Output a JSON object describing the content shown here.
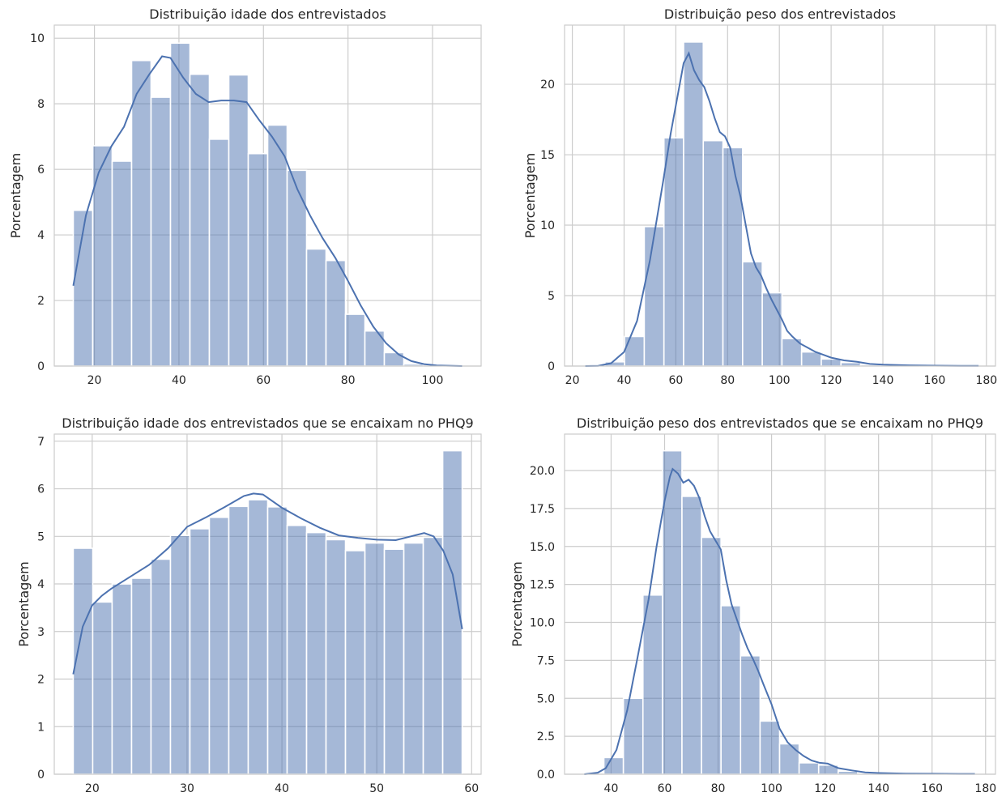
{
  "chart_data": [
    {
      "type": "bar",
      "title": "Distribuição idade dos entrevistados",
      "xlabel": "",
      "ylabel": "Porcentagem",
      "xlim": [
        10.5,
        111.5
      ],
      "ylim": [
        0,
        10.4
      ],
      "xticks": [
        20,
        40,
        60,
        80,
        100
      ],
      "yticks": [
        0,
        2,
        4,
        6,
        8,
        10
      ],
      "grid": true,
      "bins": {
        "edges": [
          15,
          19.6,
          24.2,
          28.8,
          33.4,
          38,
          42.6,
          47.2,
          51.8,
          56.4,
          61,
          65.6,
          70.2,
          74.8,
          79.4,
          84,
          88.6,
          93.2,
          97.8,
          102.4,
          107
        ],
        "values": [
          4.75,
          6.72,
          6.25,
          9.32,
          8.2,
          9.85,
          8.9,
          6.92,
          8.88,
          6.48,
          7.35,
          5.97,
          3.57,
          3.22,
          1.58,
          1.07,
          0.41,
          0.06,
          0.03,
          0.02
        ]
      },
      "kde": {
        "x": [
          15,
          18,
          21,
          24,
          27,
          30,
          33,
          36,
          38,
          41,
          44,
          47,
          50,
          53,
          56,
          59,
          62,
          65,
          68,
          71,
          74,
          77,
          80,
          83,
          86,
          89,
          92,
          95,
          98,
          101,
          104,
          107
        ],
        "y": [
          2.45,
          4.6,
          5.9,
          6.7,
          7.3,
          8.3,
          8.9,
          9.45,
          9.4,
          8.8,
          8.3,
          8.05,
          8.1,
          8.1,
          8.05,
          7.5,
          7.0,
          6.4,
          5.4,
          4.6,
          3.9,
          3.3,
          2.6,
          1.85,
          1.2,
          0.7,
          0.35,
          0.15,
          0.06,
          0.02,
          0.01,
          0.0
        ]
      }
    },
    {
      "type": "bar",
      "title": "Distribuição peso dos entrevistados",
      "xlabel": "",
      "ylabel": "Porcentagem",
      "xlim": [
        17,
        183.5
      ],
      "ylim": [
        0,
        24.2
      ],
      "xticks": [
        20,
        40,
        60,
        80,
        100,
        120,
        140,
        160,
        180
      ],
      "yticks": [
        0,
        5,
        10,
        15,
        20
      ],
      "grid": true,
      "bins": {
        "edges": [
          25,
          32.6,
          40.2,
          47.8,
          55.4,
          63,
          70.6,
          78.2,
          85.8,
          93.4,
          101,
          108.6,
          116.2,
          123.8,
          131.4,
          139,
          146.6,
          154.2,
          161.8,
          169.4,
          177
        ],
        "values": [
          0.02,
          0.3,
          2.1,
          9.9,
          16.2,
          23.0,
          16.0,
          15.5,
          7.4,
          5.2,
          1.95,
          1.0,
          0.5,
          0.25,
          0.1,
          0.05,
          0.03,
          0.03,
          0.02,
          0.02
        ]
      },
      "kde": {
        "x": [
          25,
          30,
          35,
          40,
          45,
          50,
          55,
          58,
          61,
          63,
          65,
          67,
          69,
          71,
          73,
          75,
          77,
          79,
          81,
          83,
          85,
          87,
          89,
          91,
          93,
          95,
          97,
          99,
          101,
          103,
          105,
          108,
          111,
          114,
          117,
          120,
          125,
          130,
          135,
          140,
          150,
          160,
          170,
          177
        ],
        "y": [
          0.0,
          0.02,
          0.2,
          1.0,
          3.2,
          7.5,
          13.0,
          16.5,
          19.5,
          21.5,
          22.2,
          21.0,
          20.3,
          19.8,
          18.8,
          17.6,
          16.6,
          16.3,
          15.5,
          13.5,
          12.0,
          10.0,
          8.0,
          7.0,
          6.4,
          5.5,
          4.7,
          4.0,
          3.3,
          2.5,
          2.1,
          1.6,
          1.3,
          1.0,
          0.8,
          0.6,
          0.4,
          0.3,
          0.15,
          0.1,
          0.05,
          0.03,
          0.02,
          0.02
        ]
      }
    },
    {
      "type": "bar",
      "title": "Distribuição idade dos entrevistados que se encaixam no PHQ9",
      "xlabel": "",
      "ylabel": "Porcentagem",
      "xlim": [
        16,
        61
      ],
      "ylim": [
        0,
        7.15
      ],
      "xticks": [
        20,
        30,
        40,
        50,
        60
      ],
      "yticks": [
        0,
        1,
        2,
        3,
        4,
        5,
        6,
        7
      ],
      "grid": true,
      "bins": {
        "edges": [
          18,
          20.05,
          22.1,
          24.15,
          26.2,
          28.25,
          30.3,
          32.35,
          34.4,
          36.45,
          38.5,
          40.55,
          42.6,
          44.65,
          46.7,
          48.75,
          50.8,
          52.85,
          54.9,
          56.95,
          59
        ],
        "values": [
          4.75,
          3.62,
          4.0,
          4.12,
          4.52,
          5.02,
          5.16,
          5.4,
          5.63,
          5.77,
          5.62,
          5.23,
          5.08,
          4.93,
          4.7,
          4.86,
          4.73,
          4.86,
          4.98,
          6.8
        ]
      },
      "kde": {
        "x": [
          18,
          19,
          20,
          21,
          22,
          24,
          26,
          28,
          30,
          32,
          34,
          36,
          37,
          38,
          40,
          42,
          44,
          46,
          48,
          50,
          52,
          54,
          55,
          56,
          57,
          58,
          59
        ],
        "y": [
          2.1,
          3.1,
          3.55,
          3.75,
          3.9,
          4.15,
          4.4,
          4.75,
          5.2,
          5.4,
          5.62,
          5.85,
          5.9,
          5.88,
          5.6,
          5.38,
          5.18,
          5.02,
          4.97,
          4.93,
          4.92,
          5.02,
          5.07,
          5.0,
          4.7,
          4.2,
          3.05
        ]
      }
    },
    {
      "type": "bar",
      "title": "Distribuição peso dos entrevistados que se encaixam no PHQ9",
      "xlabel": "",
      "ylabel": "Porcentagem",
      "xlim": [
        22.6,
        183.7
      ],
      "ylim": [
        0,
        22.4
      ],
      "xticks": [
        40,
        60,
        80,
        100,
        120,
        140,
        160,
        180
      ],
      "yticks": [
        0.0,
        2.5,
        5.0,
        7.5,
        10.0,
        12.5,
        15.0,
        17.5,
        20.0
      ],
      "ytick_labels": [
        "0.0",
        "2.5",
        "5.0",
        "7.5",
        "10.0",
        "12.5",
        "15.0",
        "17.5",
        "20.0"
      ],
      "grid": true,
      "bins": {
        "edges": [
          30,
          37.3,
          44.6,
          51.9,
          59.2,
          66.5,
          73.8,
          81.1,
          88.4,
          95.7,
          103,
          110.3,
          117.6,
          124.9,
          132.2,
          139.5,
          146.8,
          154.1,
          161.4,
          168.7,
          176
        ],
        "values": [
          0.0,
          1.1,
          5.0,
          11.8,
          21.3,
          18.3,
          15.6,
          11.1,
          7.8,
          3.5,
          2.0,
          0.75,
          0.6,
          0.2,
          0.07,
          0.03,
          0.02,
          0.01,
          0.01,
          0.01
        ]
      },
      "kde": {
        "x": [
          30,
          35,
          38,
          42,
          46,
          50,
          54,
          57,
          60,
          62,
          63,
          65,
          67,
          69,
          71,
          73,
          75,
          77,
          79,
          81,
          83,
          85,
          87,
          89,
          91,
          93,
          95,
          97,
          100,
          103,
          106,
          109,
          112,
          115,
          118,
          121,
          125,
          130,
          135,
          140,
          150,
          160,
          170,
          176
        ],
        "y": [
          0.0,
          0.1,
          0.4,
          1.6,
          4.2,
          7.8,
          11.5,
          15.0,
          18.0,
          19.6,
          20.1,
          19.8,
          19.2,
          19.4,
          19.0,
          18.2,
          17.0,
          16.0,
          15.4,
          14.8,
          12.8,
          11.2,
          10.2,
          9.2,
          8.3,
          7.6,
          6.8,
          5.9,
          4.6,
          3.0,
          2.1,
          1.6,
          1.2,
          0.9,
          0.75,
          0.7,
          0.4,
          0.25,
          0.12,
          0.08,
          0.04,
          0.03,
          0.02,
          0.02
        ]
      }
    }
  ]
}
